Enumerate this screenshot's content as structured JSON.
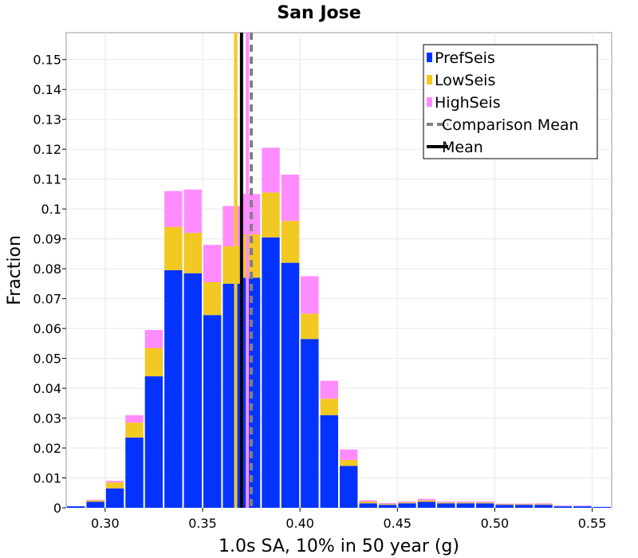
{
  "chart_data": {
    "type": "bar",
    "stacked": true,
    "title": "San Jose",
    "xlabel": "1.0s SA, 10% in 50 year (g)",
    "ylabel": "Fraction",
    "xlim": [
      0.28,
      0.56
    ],
    "ylim": [
      0,
      0.159
    ],
    "bin_width": 0.01,
    "grid": true,
    "legend_placement": "top-right",
    "x_ticks": [
      0.3,
      0.35,
      0.4,
      0.45,
      0.5,
      0.55
    ],
    "x_tick_labels": [
      "0.30",
      "0.35",
      "0.40",
      "0.45",
      "0.50",
      "0.55"
    ],
    "y_ticks": [
      0,
      0.01,
      0.02,
      0.03,
      0.04,
      0.05,
      0.06,
      0.07,
      0.08,
      0.09,
      0.1,
      0.11,
      0.12,
      0.13,
      0.14,
      0.15
    ],
    "y_tick_labels": [
      "0",
      "0.01",
      "0.02",
      "0.03",
      "0.04",
      "0.05",
      "0.06",
      "0.07",
      "0.08",
      "0.09",
      "0.1",
      "0.11",
      "0.12",
      "0.13",
      "0.14",
      "0.15"
    ],
    "bin_centers": [
      0.285,
      0.295,
      0.305,
      0.315,
      0.325,
      0.335,
      0.345,
      0.355,
      0.365,
      0.375,
      0.385,
      0.395,
      0.405,
      0.415,
      0.425,
      0.435,
      0.445,
      0.455,
      0.465,
      0.475,
      0.485,
      0.495,
      0.505,
      0.515,
      0.525,
      0.535,
      0.545,
      0.555
    ],
    "series": [
      {
        "name": "PrefSeis",
        "color": "#0433ff",
        "values": [
          0.0005,
          0.002,
          0.0065,
          0.0235,
          0.044,
          0.0795,
          0.0785,
          0.0645,
          0.075,
          0.077,
          0.0905,
          0.082,
          0.0565,
          0.031,
          0.014,
          0.0015,
          0.001,
          0.0015,
          0.002,
          0.0015,
          0.0015,
          0.0015,
          0.001,
          0.001,
          0.001,
          0.0005,
          0.0005,
          0.0003
        ]
      },
      {
        "name": "LowSeis",
        "color": "#f2c822",
        "values": [
          0.0,
          0.0005,
          0.002,
          0.005,
          0.0095,
          0.0145,
          0.0135,
          0.011,
          0.0125,
          0.0145,
          0.015,
          0.014,
          0.0085,
          0.0055,
          0.002,
          0.0005,
          0.0003,
          0.0003,
          0.0005,
          0.0003,
          0.0003,
          0.0003,
          0.0002,
          0.0002,
          0.0002,
          0.0,
          0.0,
          0.0
        ]
      },
      {
        "name": "HighSeis",
        "color": "#ff8cff",
        "values": [
          0.0,
          0.0002,
          0.0005,
          0.0025,
          0.006,
          0.012,
          0.0145,
          0.0125,
          0.0135,
          0.0135,
          0.015,
          0.0155,
          0.0125,
          0.006,
          0.0035,
          0.0005,
          0.0003,
          0.0003,
          0.0005,
          0.0003,
          0.0003,
          0.0003,
          0.0002,
          0.0002,
          0.0003,
          0.0002,
          0.0002,
          0.0
        ]
      }
    ],
    "lines": [
      {
        "name": "Comparison Mean",
        "x": 0.375,
        "color": "#808080",
        "style": "dashed"
      },
      {
        "name": "Mean",
        "x": 0.37,
        "color": "#000000",
        "style": "solid"
      },
      {
        "name": "",
        "x": 0.367,
        "color": "#f2c822",
        "style": "solid"
      },
      {
        "name": "",
        "x": 0.373,
        "color": "#ff8cff",
        "style": "solid"
      }
    ],
    "legend": [
      {
        "label": "PrefSeis",
        "swatch": "bar",
        "color": "#0433ff"
      },
      {
        "label": "LowSeis",
        "swatch": "bar",
        "color": "#f2c822"
      },
      {
        "label": "HighSeis",
        "swatch": "bar",
        "color": "#ff8cff"
      },
      {
        "label": "Comparison Mean",
        "swatch": "dashed-line",
        "color": "#808080"
      },
      {
        "label": "Mean",
        "swatch": "line",
        "color": "#000000"
      }
    ]
  }
}
